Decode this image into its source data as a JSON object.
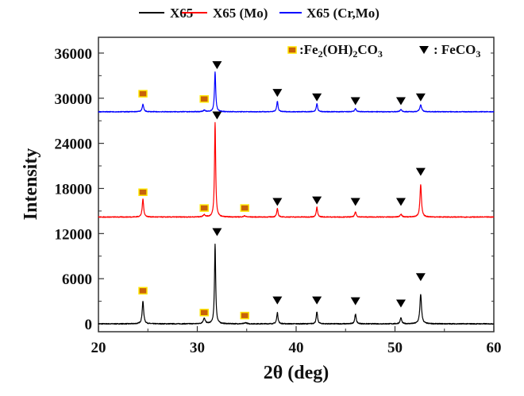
{
  "chart_data": {
    "type": "line",
    "title": "",
    "xlabel": "2θ (deg)",
    "ylabel": "Intensity",
    "xlim": [
      20,
      60
    ],
    "ylim": [
      -1050,
      38100
    ],
    "xticks": [
      20,
      30,
      40,
      50,
      60
    ],
    "xtick_labels": [
      "20",
      "30",
      "40",
      "50",
      "60"
    ],
    "yticks": [
      0,
      6000,
      12000,
      18000,
      24000,
      30000,
      36000
    ],
    "ytick_labels": [
      "0",
      "6000",
      "12000",
      "18000",
      "24000",
      "30000",
      "36000"
    ],
    "grid": false,
    "legend": {
      "placement": "top-outside",
      "entries": [
        {
          "name": "X65",
          "color": "#000000"
        },
        {
          "name": "X65 (Mo)",
          "color": "#ff0000"
        },
        {
          "name": "X65 (Cr,Mo)",
          "color": "#0000ff"
        }
      ]
    },
    "marker_legend": {
      "placement": "top-right-inside",
      "entries": [
        {
          "symbol": "square",
          "label_main": ":Fe",
          "sub1": "2",
          "label_mid": "(OH)",
          "sub2": "2",
          "label_tail": "CO",
          "sub3": "3",
          "color": "#c8620a",
          "edge": "#ffe600"
        },
        {
          "symbol": "triangle-down",
          "label_main": ": FeCO",
          "sub1": "3",
          "color": "#000000"
        }
      ]
    },
    "series": [
      {
        "name": "X65",
        "color": "#000000",
        "baseline": 0,
        "noise": 120,
        "peaks": [
          {
            "x": 24.5,
            "y": 3000,
            "width": 0.18
          },
          {
            "x": 30.7,
            "y": 700,
            "width": 0.25
          },
          {
            "x": 31.8,
            "y": 10600,
            "width": 0.14
          },
          {
            "x": 34.9,
            "y": 150,
            "width": 0.25
          },
          {
            "x": 38.1,
            "y": 1500,
            "width": 0.16
          },
          {
            "x": 42.1,
            "y": 1600,
            "width": 0.16
          },
          {
            "x": 46.0,
            "y": 1300,
            "width": 0.17
          },
          {
            "x": 50.6,
            "y": 800,
            "width": 0.18
          },
          {
            "x": 52.6,
            "y": 3900,
            "width": 0.2
          }
        ]
      },
      {
        "name": "X65 (Mo)",
        "color": "#ff0000",
        "baseline": 14200,
        "noise": 110,
        "peaks": [
          {
            "x": 24.5,
            "y": 2400,
            "width": 0.17
          },
          {
            "x": 30.7,
            "y": 300,
            "width": 0.25
          },
          {
            "x": 31.8,
            "y": 12600,
            "width": 0.14
          },
          {
            "x": 34.8,
            "y": 150,
            "width": 0.25
          },
          {
            "x": 38.1,
            "y": 1100,
            "width": 0.16
          },
          {
            "x": 42.1,
            "y": 1300,
            "width": 0.16
          },
          {
            "x": 46.0,
            "y": 700,
            "width": 0.17
          },
          {
            "x": 50.6,
            "y": 400,
            "width": 0.2
          },
          {
            "x": 52.6,
            "y": 4300,
            "width": 0.18
          }
        ]
      },
      {
        "name": "X65 (Cr,Mo)",
        "color": "#0000ff",
        "baseline": 28200,
        "noise": 100,
        "peaks": [
          {
            "x": 24.5,
            "y": 1000,
            "width": 0.18
          },
          {
            "x": 30.7,
            "y": 200,
            "width": 0.25
          },
          {
            "x": 31.8,
            "y": 5300,
            "width": 0.15
          },
          {
            "x": 38.1,
            "y": 1400,
            "width": 0.16
          },
          {
            "x": 42.1,
            "y": 1100,
            "width": 0.16
          },
          {
            "x": 46.0,
            "y": 400,
            "width": 0.2
          },
          {
            "x": 50.6,
            "y": 300,
            "width": 0.2
          },
          {
            "x": 52.6,
            "y": 900,
            "width": 0.22
          }
        ]
      }
    ],
    "annotations": [
      {
        "series": "X65",
        "type": "square",
        "x": 24.5,
        "y": 4400
      },
      {
        "series": "X65",
        "type": "square",
        "x": 30.7,
        "y": 1500
      },
      {
        "series": "X65",
        "type": "square",
        "x": 34.8,
        "y": 1100
      },
      {
        "series": "X65",
        "type": "triangle",
        "x": 32.0,
        "y": 12200
      },
      {
        "series": "X65",
        "type": "triangle",
        "x": 38.1,
        "y": 3100
      },
      {
        "series": "X65",
        "type": "triangle",
        "x": 42.1,
        "y": 3100
      },
      {
        "series": "X65",
        "type": "triangle",
        "x": 46.0,
        "y": 3000
      },
      {
        "series": "X65",
        "type": "triangle",
        "x": 50.6,
        "y": 2700
      },
      {
        "series": "X65",
        "type": "triangle",
        "x": 52.6,
        "y": 6200
      },
      {
        "series": "X65 (Mo)",
        "type": "square",
        "x": 24.5,
        "y": 17500
      },
      {
        "series": "X65 (Mo)",
        "type": "square",
        "x": 30.7,
        "y": 15400
      },
      {
        "series": "X65 (Mo)",
        "type": "square",
        "x": 34.8,
        "y": 15400
      },
      {
        "series": "X65 (Mo)",
        "type": "triangle",
        "x": 32.0,
        "y": 27700
      },
      {
        "series": "X65 (Mo)",
        "type": "triangle",
        "x": 38.1,
        "y": 16200
      },
      {
        "series": "X65 (Mo)",
        "type": "triangle",
        "x": 42.1,
        "y": 16400
      },
      {
        "series": "X65 (Mo)",
        "type": "triangle",
        "x": 46.0,
        "y": 16200
      },
      {
        "series": "X65 (Mo)",
        "type": "triangle",
        "x": 50.6,
        "y": 16200
      },
      {
        "series": "X65 (Mo)",
        "type": "triangle",
        "x": 52.6,
        "y": 20200
      },
      {
        "series": "X65 (Cr,Mo)",
        "type": "square",
        "x": 24.5,
        "y": 30600
      },
      {
        "series": "X65 (Cr,Mo)",
        "type": "square",
        "x": 30.7,
        "y": 29900
      },
      {
        "series": "X65 (Cr,Mo)",
        "type": "triangle",
        "x": 32.0,
        "y": 34400
      },
      {
        "series": "X65 (Cr,Mo)",
        "type": "triangle",
        "x": 38.1,
        "y": 30700
      },
      {
        "series": "X65 (Cr,Mo)",
        "type": "triangle",
        "x": 42.1,
        "y": 30100
      },
      {
        "series": "X65 (Cr,Mo)",
        "type": "triangle",
        "x": 46.0,
        "y": 29600
      },
      {
        "series": "X65 (Cr,Mo)",
        "type": "triangle",
        "x": 50.6,
        "y": 29600
      },
      {
        "series": "X65 (Cr,Mo)",
        "type": "triangle",
        "x": 52.6,
        "y": 30100
      }
    ]
  }
}
